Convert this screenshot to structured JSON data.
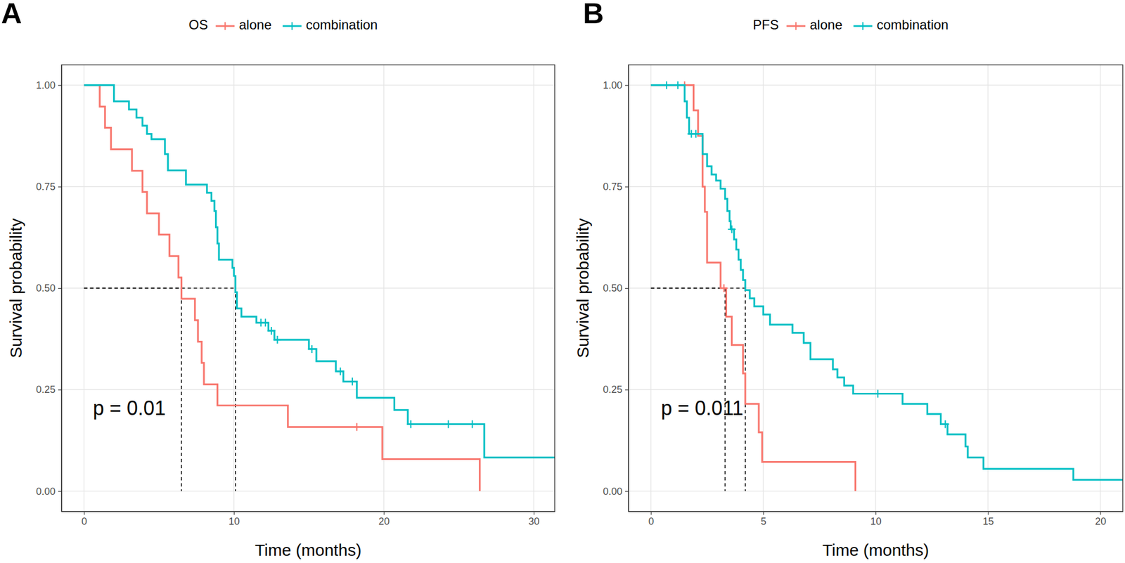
{
  "chart_data": [
    {
      "type": "step",
      "tag": "A",
      "legend_title": "OS",
      "legend": "top",
      "grid": true,
      "xlabel": "Time (months)",
      "ylabel": "Survival probability",
      "xlim": [
        -1.5,
        31.4
      ],
      "ylim": [
        -0.05,
        1.05
      ],
      "xticks": [
        0,
        10,
        20,
        30
      ],
      "yticks": [
        {
          "value": 0,
          "label": "0.00"
        },
        {
          "value": 0.25,
          "label": "0.25"
        },
        {
          "value": 0.5,
          "label": "0.50"
        },
        {
          "value": 0.75,
          "label": "0.75"
        },
        {
          "value": 1,
          "label": "1.00"
        }
      ],
      "median_y": 0.5,
      "annotations": [
        {
          "text": "p = 0.01",
          "x": 0.6,
          "y": 0.2
        }
      ],
      "series": [
        {
          "name": "alone",
          "color": "#F8766D",
          "marker": "+",
          "median": 6.5,
          "x": [
            0,
            1.05,
            1.4,
            1.8,
            3.2,
            3.9,
            4.2,
            5.0,
            5.7,
            6.3,
            6.5,
            7.4,
            7.6,
            7.85,
            8.0,
            8.9,
            13.6,
            19.9,
            26.4
          ],
          "values": [
            1,
            0.947,
            0.895,
            0.842,
            0.789,
            0.737,
            0.684,
            0.632,
            0.579,
            0.526,
            0.474,
            0.421,
            0.368,
            0.316,
            0.263,
            0.211,
            0.158,
            0.079,
            0
          ],
          "censor_x": [
            18.2
          ],
          "censor_values": [
            0.158
          ]
        },
        {
          "name": "combination",
          "color": "#00BFC4",
          "marker": "+",
          "median": 10.1,
          "x": [
            0,
            2.0,
            3.0,
            3.5,
            3.9,
            4.2,
            4.5,
            5.4,
            5.6,
            6.8,
            8.2,
            8.5,
            8.7,
            8.8,
            8.9,
            9.0,
            9.9,
            10.0,
            10.1,
            10.2,
            10.5,
            11.5,
            12.3,
            12.7,
            15.0,
            15.5,
            16.8,
            17.3,
            18.2,
            20.7,
            21.6,
            26.7,
            31.4
          ],
          "values": [
            1,
            0.96,
            0.94,
            0.92,
            0.9,
            0.88,
            0.867,
            0.83,
            0.79,
            0.755,
            0.735,
            0.715,
            0.69,
            0.65,
            0.61,
            0.57,
            0.55,
            0.53,
            0.49,
            0.45,
            0.43,
            0.415,
            0.395,
            0.373,
            0.35,
            0.32,
            0.295,
            0.27,
            0.23,
            0.2,
            0.165,
            0.083,
            0.083
          ],
          "censor_x": [
            11.8,
            12.1,
            12.5,
            12.9,
            15.2,
            17.1,
            17.9,
            21.8,
            24.3,
            25.9
          ],
          "censor_values": [
            0.415,
            0.415,
            0.395,
            0.373,
            0.35,
            0.295,
            0.27,
            0.165,
            0.165,
            0.165
          ]
        }
      ]
    },
    {
      "type": "step",
      "tag": "B",
      "legend_title": "PFS",
      "legend": "top",
      "grid": true,
      "xlabel": "Time (months)",
      "ylabel": "Survival probability",
      "xlim": [
        -1.0,
        21.0
      ],
      "ylim": [
        -0.05,
        1.05
      ],
      "xticks": [
        0,
        5,
        10,
        15,
        20
      ],
      "yticks": [
        {
          "value": 0,
          "label": "0.00"
        },
        {
          "value": 0.25,
          "label": "0.25"
        },
        {
          "value": 0.5,
          "label": "0.50"
        },
        {
          "value": 0.75,
          "label": "0.75"
        },
        {
          "value": 1,
          "label": "1.00"
        }
      ],
      "median_y": 0.5,
      "annotations": [
        {
          "text": "p = 0.011",
          "x": 0.45,
          "y": 0.2
        }
      ],
      "series": [
        {
          "name": "alone",
          "color": "#F8766D",
          "marker": "+",
          "median": 3.3,
          "x": [
            0,
            1.9,
            2.1,
            2.3,
            2.4,
            2.5,
            3.1,
            3.35,
            3.6,
            4.1,
            4.2,
            4.8,
            4.95,
            9.1
          ],
          "values": [
            1,
            0.938,
            0.875,
            0.75,
            0.688,
            0.563,
            0.5,
            0.43,
            0.36,
            0.29,
            0.215,
            0.145,
            0.072,
            0
          ],
          "censor_x": [
            1.5,
            3.25
          ],
          "censor_values": [
            1,
            0.5
          ]
        },
        {
          "name": "combination",
          "color": "#00BFC4",
          "marker": "+",
          "median": 4.2,
          "x": [
            0,
            1.5,
            1.6,
            1.7,
            2.3,
            2.5,
            2.7,
            2.9,
            3.1,
            3.3,
            3.4,
            3.5,
            3.55,
            3.7,
            3.8,
            3.9,
            4.0,
            4.1,
            4.2,
            4.4,
            4.6,
            5.0,
            5.3,
            6.3,
            6.8,
            7.1,
            8.1,
            8.3,
            8.6,
            9.0,
            11.2,
            12.3,
            12.9,
            13.2,
            14.0,
            14.1,
            14.8,
            18.8,
            21.0
          ],
          "values": [
            1,
            0.96,
            0.92,
            0.88,
            0.83,
            0.8,
            0.78,
            0.765,
            0.745,
            0.72,
            0.69,
            0.665,
            0.645,
            0.62,
            0.595,
            0.57,
            0.545,
            0.52,
            0.495,
            0.475,
            0.455,
            0.435,
            0.41,
            0.39,
            0.365,
            0.325,
            0.3,
            0.28,
            0.26,
            0.24,
            0.215,
            0.19,
            0.165,
            0.14,
            0.11,
            0.083,
            0.055,
            0.028,
            0.028
          ],
          "censor_x": [
            0.7,
            1.2,
            1.8,
            2.0,
            3.6,
            10.1,
            13.1
          ],
          "censor_values": [
            1,
            1,
            0.88,
            0.88,
            0.645,
            0.24,
            0.165
          ]
        }
      ]
    }
  ]
}
